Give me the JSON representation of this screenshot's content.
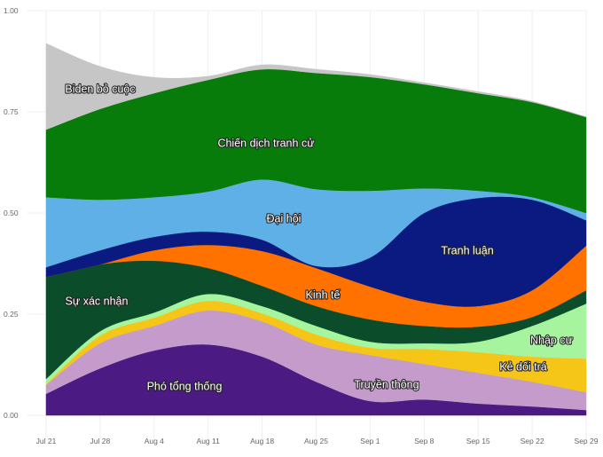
{
  "chart_data": {
    "type": "area",
    "stacked": true,
    "title": "",
    "xlabel": "",
    "ylabel": "",
    "ylim": [
      0,
      1
    ],
    "yticks": [
      "0.00",
      "0.25",
      "0.50",
      "0.75",
      "1.00"
    ],
    "ytick_values": [
      0,
      0.25,
      0.5,
      0.75,
      1.0
    ],
    "categories": [
      "Jul 21",
      "Jul 28",
      "Aug 4",
      "Aug 11",
      "Aug 18",
      "Aug 25",
      "Sep 1",
      "Sep 8",
      "Sep 15",
      "Sep 22",
      "Sep 29"
    ],
    "grid": true,
    "legend": "inline labels",
    "series": [
      {
        "name": "Phó tổng thống",
        "color": "#4b1a82",
        "values": [
          0.053,
          0.116,
          0.16,
          0.175,
          0.145,
          0.083,
          0.035,
          0.039,
          0.029,
          0.022,
          0.013
        ]
      },
      {
        "name": "Truyền thông",
        "color": "#c49bcb",
        "values": [
          0.022,
          0.062,
          0.061,
          0.084,
          0.087,
          0.092,
          0.114,
          0.088,
          0.076,
          0.061,
          0.044
        ]
      },
      {
        "name": "Kẻ dối trá",
        "color": "#f5c518",
        "values": [
          0.002,
          0.019,
          0.02,
          0.024,
          0.02,
          0.025,
          0.018,
          0.037,
          0.051,
          0.062,
          0.083
        ]
      },
      {
        "name": "Nhập cư",
        "color": "#a6f59e",
        "values": [
          0.013,
          0.011,
          0.013,
          0.017,
          0.018,
          0.021,
          0.015,
          0.014,
          0.026,
          0.076,
          0.136
        ]
      },
      {
        "name": "Sự xác nhận",
        "color": "#0b4d2b",
        "values": [
          0.252,
          0.165,
          0.128,
          0.064,
          0.05,
          0.049,
          0.055,
          0.043,
          0.037,
          0.022,
          0.033
        ]
      },
      {
        "name": "Kinh tế",
        "color": "#ff7200",
        "values": [
          0.0,
          0.0,
          0.026,
          0.057,
          0.086,
          0.094,
          0.081,
          0.06,
          0.051,
          0.066,
          0.11
        ]
      },
      {
        "name": "Tranh luận",
        "color": "#0b1a80",
        "values": [
          0.024,
          0.035,
          0.033,
          0.033,
          0.028,
          0.005,
          0.072,
          0.219,
          0.267,
          0.224,
          0.063
        ]
      },
      {
        "name": "Đại hội",
        "color": "#5eb0e6",
        "values": [
          0.173,
          0.125,
          0.098,
          0.099,
          0.149,
          0.19,
          0.165,
          0.061,
          0.018,
          0.006,
          0.018
        ]
      },
      {
        "name": "Chiến dịch tranh cử",
        "color": "#087c0a",
        "values": [
          0.167,
          0.224,
          0.257,
          0.276,
          0.272,
          0.287,
          0.281,
          0.257,
          0.241,
          0.235,
          0.237
        ]
      },
      {
        "name": "Biden bỏ cuộc",
        "color": "#c6c6c6",
        "values": [
          0.213,
          0.105,
          0.039,
          0.009,
          0.011,
          0.009,
          0.006,
          0.004,
          0.004,
          0.002,
          0.001
        ]
      }
    ]
  }
}
